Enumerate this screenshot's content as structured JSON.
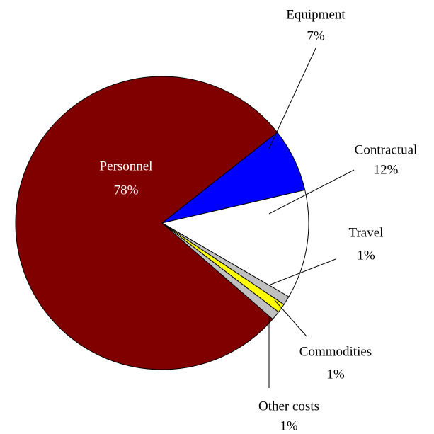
{
  "chart_data": {
    "type": "pie",
    "categories": [
      "Personnel",
      "Equipment",
      "Contractual",
      "Travel",
      "Commodities",
      "Other costs"
    ],
    "values": [
      78,
      7,
      12,
      1,
      1,
      1
    ],
    "value_labels": [
      "78%",
      "7%",
      "12%",
      "1%",
      "1%",
      "1%"
    ],
    "colors": [
      "#800000",
      "#0000ff",
      "#ffffff",
      "#c0c0c0",
      "#ffff00",
      "#c0c0c0"
    ]
  }
}
